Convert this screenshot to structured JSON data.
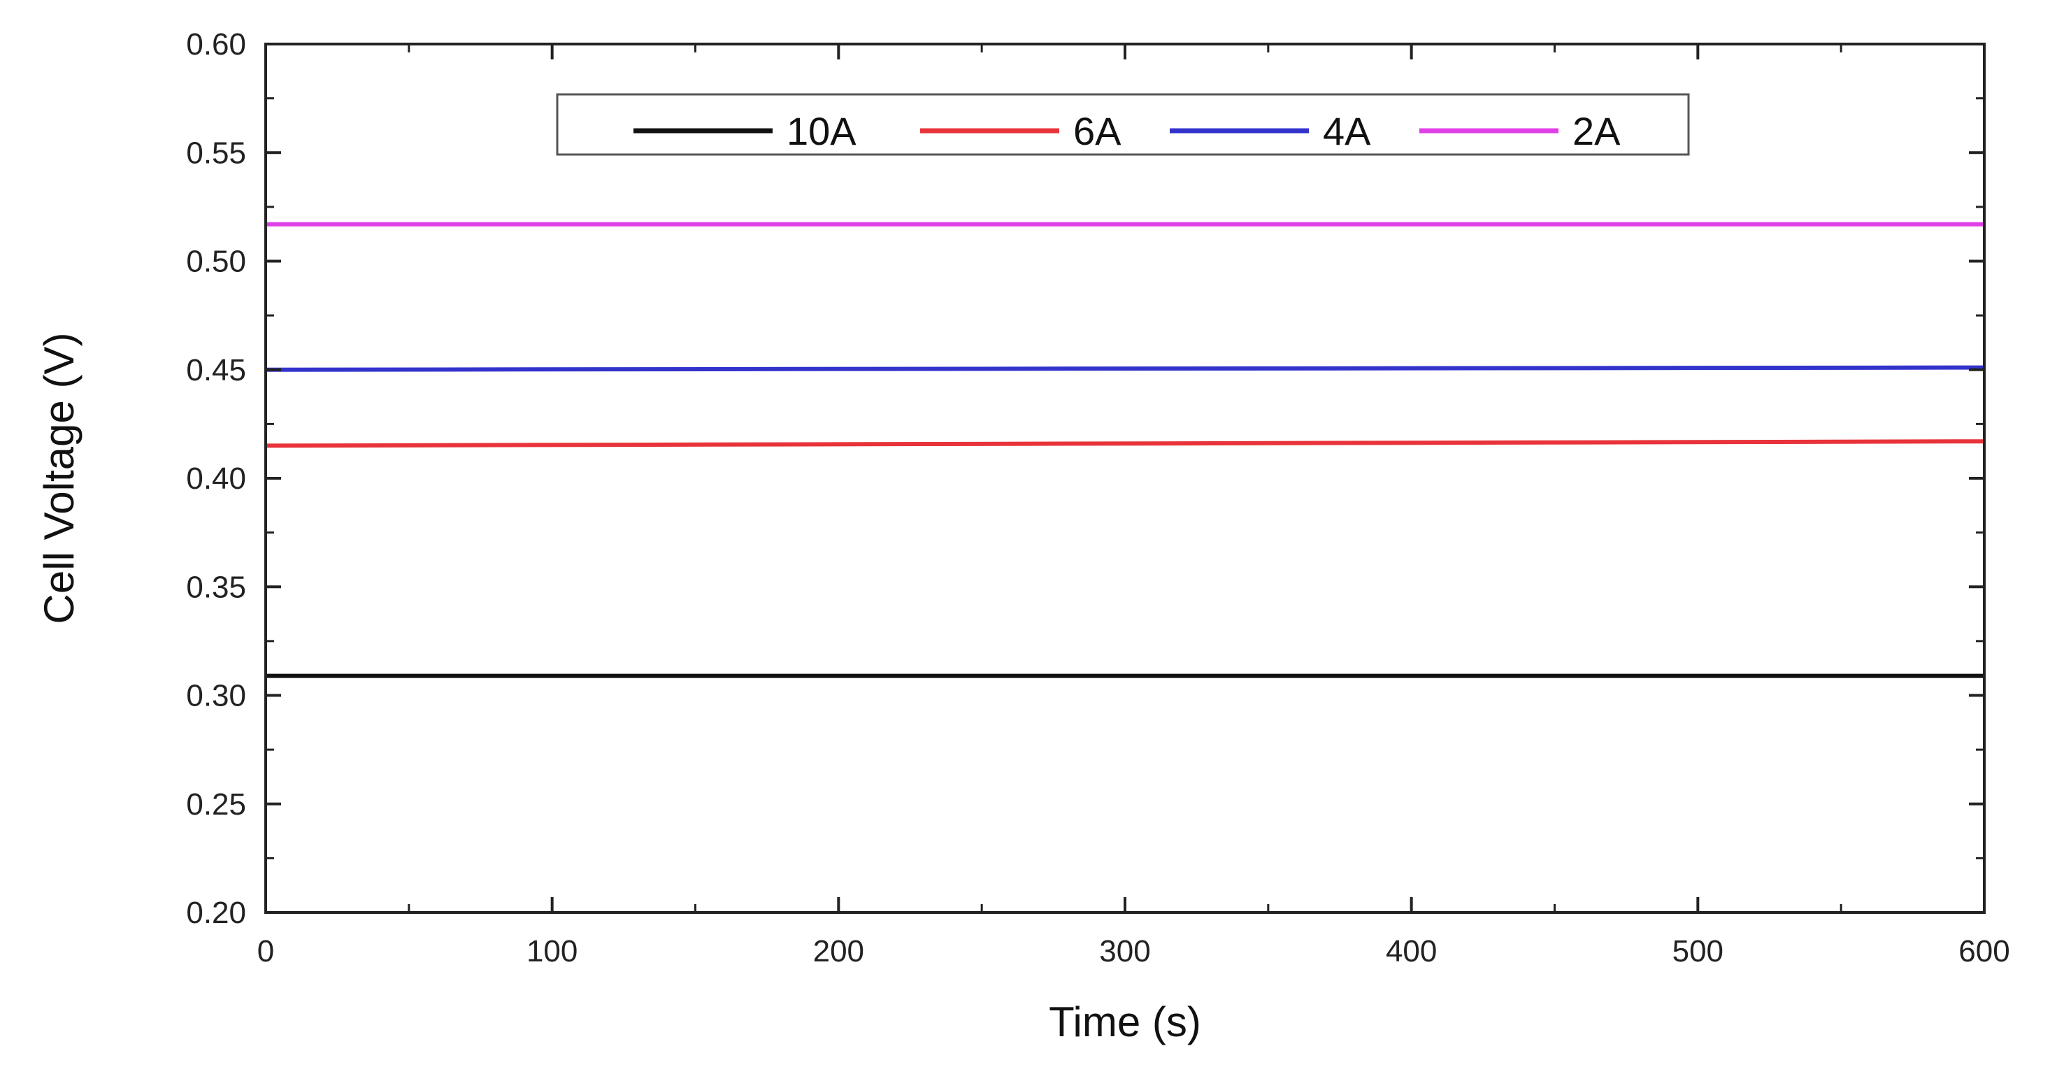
{
  "chart_data": {
    "type": "line",
    "title": "",
    "xlabel": "Time (s)",
    "ylabel": "Cell Voltage (V)",
    "xlim": [
      0,
      600
    ],
    "ylim": [
      0.2,
      0.6
    ],
    "x_ticks": [
      0,
      100,
      200,
      300,
      400,
      500,
      600
    ],
    "x_tick_labels": [
      "0",
      "100",
      "200",
      "300",
      "400",
      "500",
      "600"
    ],
    "y_ticks": [
      0.2,
      0.25,
      0.3,
      0.35,
      0.4,
      0.45,
      0.5,
      0.55,
      0.6
    ],
    "y_tick_labels": [
      "0.20",
      "0.25",
      "0.30",
      "0.35",
      "0.40",
      "0.45",
      "0.50",
      "0.55",
      "0.60"
    ],
    "grid": false,
    "legend_position": "top-center",
    "series": [
      {
        "name": "10A",
        "color": "#111111",
        "x": [
          0,
          600
        ],
        "values": [
          0.309,
          0.309
        ]
      },
      {
        "name": "6A",
        "color": "#e8333a",
        "x": [
          0,
          600
        ],
        "values": [
          0.415,
          0.417
        ]
      },
      {
        "name": "4A",
        "color": "#3333cc",
        "x": [
          0,
          600
        ],
        "values": [
          0.45,
          0.451
        ]
      },
      {
        "name": "2A",
        "color": "#e040e8",
        "x": [
          0,
          600
        ],
        "values": [
          0.517,
          0.517
        ]
      }
    ]
  }
}
